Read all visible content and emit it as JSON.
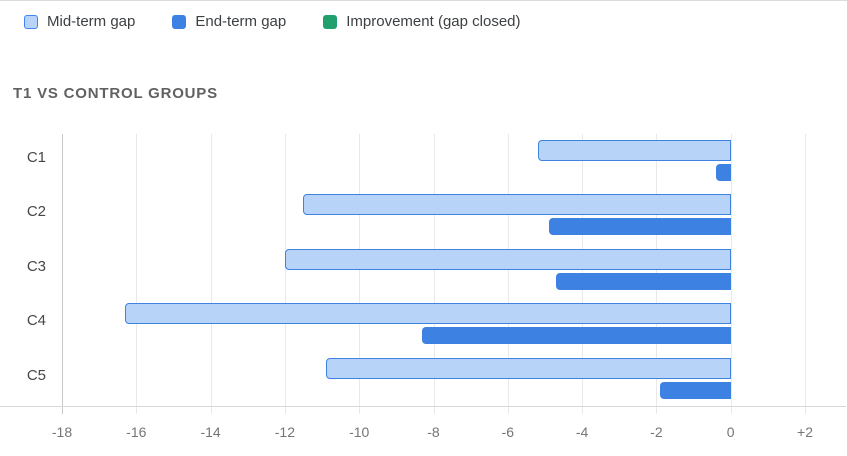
{
  "title": "T1 VS CONTROL GROUPS",
  "legend": {
    "items": [
      {
        "label": "Mid-term gap",
        "fill": "#B7D3F7",
        "border": "#4285F4"
      },
      {
        "label": "End-term gap",
        "fill": "#3D82E2",
        "border": "#3D82E2"
      },
      {
        "label": "Improvement (gap closed)",
        "fill": "#21A06E",
        "border": "#21A06E"
      }
    ]
  },
  "chart_data": {
    "type": "bar",
    "orientation": "horizontal",
    "title": "T1 VS CONTROL GROUPS",
    "categories": [
      "C1",
      "C2",
      "C3",
      "C4",
      "C5"
    ],
    "series": [
      {
        "name": "Mid-term gap",
        "values": [
          -5.2,
          -11.5,
          -12.0,
          -16.3,
          -10.9
        ],
        "fill": "#B7D3F7",
        "border": "#3F83E0"
      },
      {
        "name": "End-term gap",
        "values": [
          -0.4,
          -4.9,
          -4.7,
          -8.3,
          -1.9
        ],
        "fill": "#3D82E2",
        "border": "#3D82E2"
      },
      {
        "name": "Improvement (gap closed)",
        "values": [
          null,
          null,
          null,
          null,
          null
        ],
        "fill": "#21A06E",
        "border": "#21A06E"
      }
    ],
    "xlim": [
      -18,
      2
    ],
    "xticks": [
      -18,
      -16,
      -14,
      -12,
      -10,
      -8,
      -6,
      -4,
      -2,
      0,
      2
    ],
    "xtick_labels": [
      "-18",
      "-16",
      "-14",
      "-12",
      "-10",
      "-8",
      "-6",
      "-4",
      "-2",
      "0",
      "+2"
    ],
    "baseline": 0,
    "grid": true,
    "legend_position": "top"
  },
  "colors": {
    "title_text": "#616161",
    "legend_text": "#3c4043",
    "category_label": "#474747",
    "tick_label": "#757575",
    "gridline": "#e9e9e9",
    "first_gridline": "#c8c8c8",
    "axis_line": "#d8d8d8",
    "panel_border": "#dadce0"
  }
}
